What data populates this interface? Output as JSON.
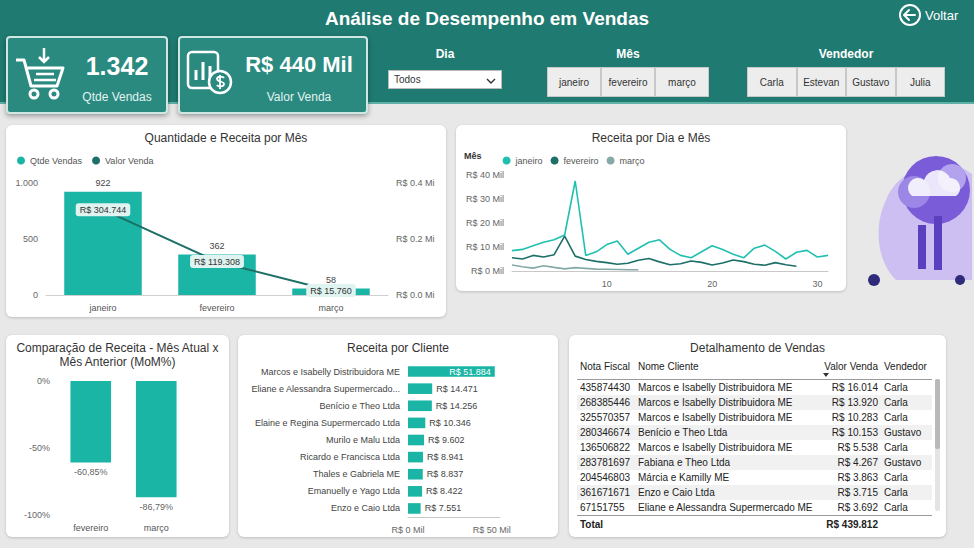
{
  "header": {
    "title": "Análise de Desempenho em Vendas",
    "back_button": "Voltar"
  },
  "kpis": [
    {
      "value": "1.342",
      "label": "Qtde Vendas"
    },
    {
      "value": "R$ 440 Mil",
      "label": "Valor Venda"
    }
  ],
  "filters": [
    {
      "label": "Dia",
      "selected": "Todos"
    },
    {
      "label": "Mês",
      "options": [
        "janeiro",
        "fevereiro",
        "março"
      ]
    },
    {
      "label": "Vendedor",
      "options": [
        "Carla",
        "Estevan",
        "Gustavo",
        "Julia"
      ]
    }
  ],
  "chart_data": [
    {
      "type": "bar",
      "title": "Quantidade e Receita por Mês",
      "categories": [
        "janeiro",
        "fevereiro",
        "março"
      ],
      "series": [
        {
          "name": "Qtde Vendas",
          "type": "bar",
          "color": "#1ab5a5",
          "values": [
            922,
            362,
            58
          ]
        },
        {
          "name": "Valor Venda",
          "type": "line",
          "axis": "y2",
          "color": "#1d6f68",
          "values": [
            304744,
            119308,
            15760
          ],
          "value_labels": [
            "R$ 304.744",
            "R$ 119.308",
            "R$ 15.760"
          ]
        }
      ],
      "ylim": [
        0,
        1000
      ],
      "yticks": [
        0,
        500,
        {
          "value": 1000,
          "label": "1.000"
        }
      ],
      "y2lim": [
        0,
        400000
      ],
      "y2ticks": [
        {
          "value": 0,
          "label": "R$ 0.0 Mi"
        },
        {
          "value": 200000,
          "label": "R$ 0.2 Mi"
        },
        {
          "value": 400000,
          "label": "R$ 0.4 Mi"
        }
      ],
      "legend": "top-left",
      "data_labels": true,
      "grid": false
    },
    {
      "type": "line",
      "title": "Receita por Dia e Mês",
      "legend_title": "Mês",
      "x": [
        1,
        2,
        3,
        4,
        5,
        6,
        7,
        8,
        9,
        10,
        11,
        12,
        13,
        14,
        15,
        16,
        17,
        18,
        19,
        20,
        21,
        22,
        23,
        24,
        25,
        26,
        27,
        28,
        29,
        30,
        31
      ],
      "series": [
        {
          "name": "janeiro",
          "color": "#20c0b0",
          "values": [
            8500,
            9000,
            10500,
            12000,
            13000,
            15000,
            37500,
            6500,
            8000,
            11000,
            12500,
            7000,
            9500,
            12000,
            13000,
            9000,
            6500,
            5500,
            8000,
            10500,
            9000,
            7000,
            5500,
            9500,
            10800,
            8200,
            5000,
            7800,
            8600,
            5800,
            6500
          ]
        },
        {
          "name": "fevereiro",
          "color": "#1d6f68",
          "values": [
            5500,
            5000,
            6500,
            5800,
            6800,
            14500,
            6200,
            4800,
            4000,
            3500,
            2800,
            3200,
            4500,
            5200,
            3800,
            2600,
            3000,
            4200,
            3600,
            2500,
            3300,
            4600,
            3900,
            2800,
            2400,
            3500,
            2600,
            2000,
            null,
            null,
            null
          ]
        },
        {
          "name": "março",
          "color": "#85aaa6",
          "values": [
            2500,
            1800,
            1200,
            2200,
            1500,
            900,
            1400,
            1100,
            800,
            700,
            600,
            500,
            500,
            null,
            null,
            null,
            null,
            null,
            null,
            null,
            null,
            null,
            null,
            null,
            null,
            null,
            null,
            null,
            null,
            null,
            null
          ]
        }
      ],
      "xlim": [
        1,
        31
      ],
      "xticks": [
        10,
        20,
        30
      ],
      "ylim": [
        0,
        40000
      ],
      "yticks": [
        {
          "value": 0,
          "label": "R$ 0 Mil"
        },
        {
          "value": 10000,
          "label": "R$ 10 Mil"
        },
        {
          "value": 20000,
          "label": "R$ 20 Mil"
        },
        {
          "value": 30000,
          "label": "R$ 30 Mil"
        },
        {
          "value": 40000,
          "label": "R$ 40 Mil"
        }
      ],
      "legend": "top-left",
      "grid": false
    },
    {
      "type": "bar",
      "title": "Comparação de Receita - Mês Atual x Mês Anterior (MoM%)",
      "categories": [
        "fevereiro",
        "março"
      ],
      "values": [
        -60.85,
        -86.79
      ],
      "value_labels": [
        "-60,85%",
        "-86,79%"
      ],
      "color": "#1ab5a5",
      "ylim": [
        -100,
        0
      ],
      "yticks": [
        {
          "value": -100,
          "label": "-100%"
        },
        {
          "value": -50,
          "label": "-50%"
        },
        {
          "value": 0,
          "label": "0%"
        }
      ],
      "data_labels": true,
      "grid": false
    },
    {
      "type": "bar",
      "title": "Receita por Cliente",
      "orientation": "horizontal",
      "categories": [
        "Marcos e Isabelly Distribuidora ME",
        "Eliane e Alessandra Supermercado...",
        "Benício e Theo Ltda",
        "Elaine e Regina Supermercado Ltda",
        "Murilo e Malu Ltda",
        "Ricardo e Francisca Ltda",
        "Thales e Gabriela ME",
        "Emanuelly e Yago Ltda",
        "Enzo e Caio Ltda"
      ],
      "values": [
        51884,
        14471,
        14256,
        10346,
        9602,
        8941,
        8837,
        8422,
        7551
      ],
      "value_labels": [
        "R$ 51.884",
        "R$ 14.471",
        "R$ 14.256",
        "R$ 10.346",
        "R$ 9.602",
        "R$ 8.941",
        "R$ 8.837",
        "R$ 8.422",
        "R$ 7.551"
      ],
      "color": "#1ab5a5",
      "xlim": [
        0,
        55000
      ],
      "xticks": [
        {
          "value": 0,
          "label": "R$ 0 Mil"
        },
        {
          "value": 50000,
          "label": "R$ 50 Mil"
        }
      ],
      "data_labels": true,
      "grid": false
    }
  ],
  "table": {
    "title": "Detalhamento de Vendas",
    "columns": [
      "Nota Fiscal",
      "Nome Cliente",
      "Valor Venda",
      "Vendedor"
    ],
    "sorted_by": "Valor Venda",
    "rows": [
      [
        "435874430",
        "Marcos e Isabelly Distribuidora ME",
        "R$ 16.014",
        "Carla"
      ],
      [
        "268385446",
        "Marcos e Isabelly Distribuidora ME",
        "R$ 13.920",
        "Carla"
      ],
      [
        "325570357",
        "Marcos e Isabelly Distribuidora ME",
        "R$ 10.283",
        "Carla"
      ],
      [
        "280346674",
        "Benício e Theo Ltda",
        "R$ 10.153",
        "Gustavo"
      ],
      [
        "136506822",
        "Marcos e Isabelly Distribuidora ME",
        "R$ 5.538",
        "Carla"
      ],
      [
        "283781697",
        "Fabiana e Theo Ltda",
        "R$ 4.267",
        "Gustavo"
      ],
      [
        "204546803",
        "Márcia e Kamilly ME",
        "R$ 3.863",
        "Carla"
      ],
      [
        "361671671",
        "Enzo e Caio Ltda",
        "R$ 3.715",
        "Carla"
      ],
      [
        "67151755",
        "Eliane e Alessandra Supermercado ME",
        "R$ 3.692",
        "Carla"
      ]
    ],
    "total": {
      "label": "Total",
      "column": "Valor Venda",
      "value": "R$ 439.812"
    }
  }
}
